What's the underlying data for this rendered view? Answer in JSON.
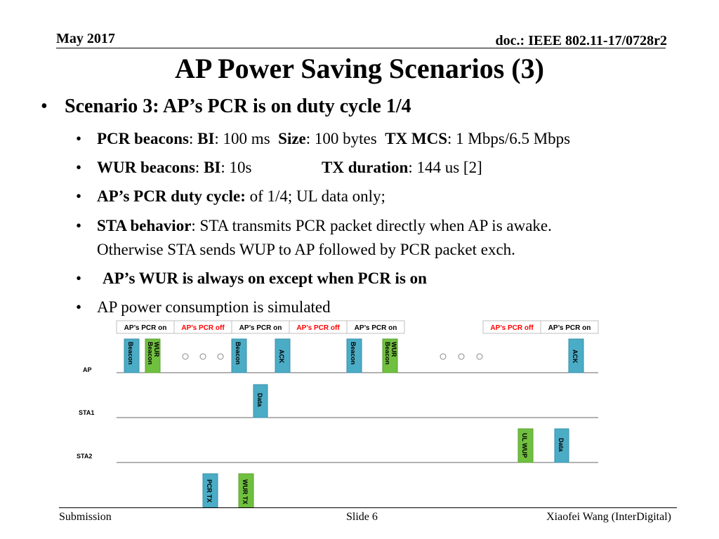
{
  "header": {
    "date": "May 2017",
    "doc": "doc.: IEEE 802.11-17/0728r2"
  },
  "title": "AP Power Saving Scenarios (3)",
  "scenario": "Scenario 3: AP’s PCR is on duty cycle 1/4",
  "bullets": {
    "b1": {
      "k1": "PCR beacons",
      "s1": ": ",
      "k2": "BI",
      "t1": ": 100 ms  ",
      "k3": "Size",
      "t2": ": 100 bytes  ",
      "k4": "TX MCS",
      "t3": ": 1 Mbps/6.5 Mbps"
    },
    "b2": {
      "k1": "WUR beacons",
      "s1": ": ",
      "k2": "BI",
      "t1": ": 10s",
      "k3": "TX duration",
      "t2": ": 144 us [2]"
    },
    "b3": {
      "k1": "AP’s PCR duty cycle:",
      "t1": " of 1/4; UL data only;"
    },
    "b4": {
      "k1": "STA behavior",
      "t1": ": STA transmits PCR packet directly when AP is awake.",
      "t2": "Otherwise STA sends WUP to AP followed by PCR packet exch."
    },
    "b5": {
      "k1": "AP’s WUR is always on except when PCR is on"
    },
    "b6": {
      "t1": "AP power consumption is simulated"
    }
  },
  "diagram": {
    "phases": [
      "AP’s PCR on",
      "AP’s PCR off",
      "AP’s PCR on",
      "AP’s PCR off",
      "AP’s PCR on",
      "AP’s PCR off",
      "AP’s PCR on"
    ],
    "rows": [
      "AP",
      "STA1",
      "STA2"
    ],
    "packets": {
      "beacon": "Beacon",
      "wur_beacon_1": "WUR",
      "wur_beacon_2": "Beacon",
      "ack": "ACK",
      "data": "Data",
      "ul_wup": "UL WUP"
    },
    "legend": {
      "pcr_tx": "PCR TX",
      "wur_tx": "WUR TX"
    },
    "colors": {
      "pcr": "#4BACC6",
      "wur": "#70C040",
      "on_text": "#000000",
      "off_text": "#FF0000"
    }
  },
  "footer": {
    "left": "Submission",
    "center": "Slide 6",
    "right": "Xiaofei Wang (InterDigital)"
  }
}
